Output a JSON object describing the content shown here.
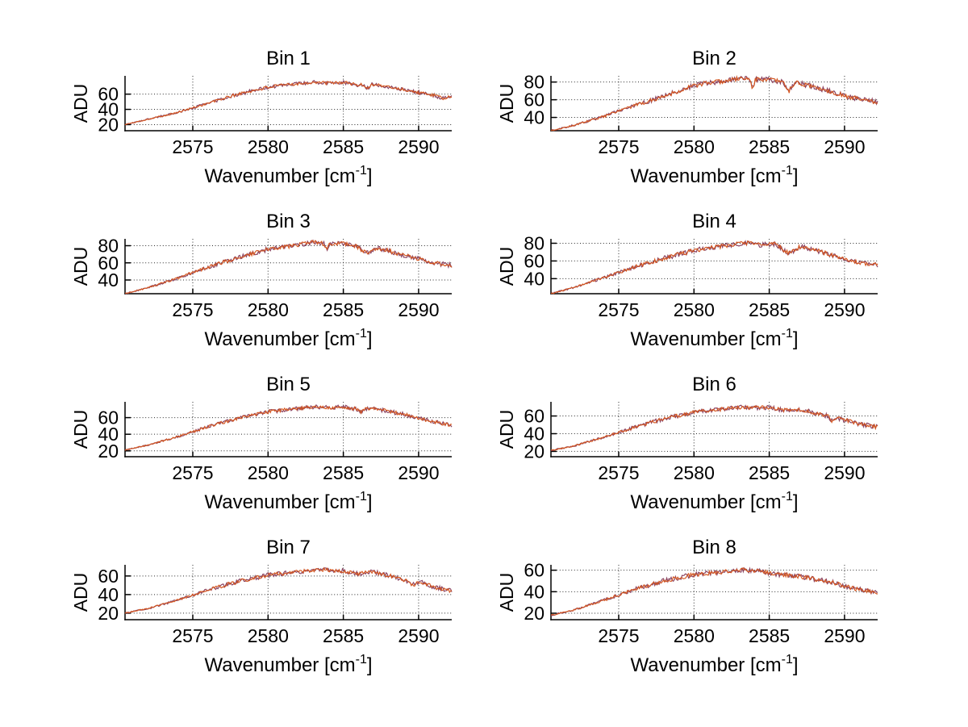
{
  "figure": {
    "background": "#ffffff",
    "ylabel": "ADU",
    "xlabel_prefix": "Wavenumber [cm",
    "xlabel_sup": "-1",
    "xlabel_suffix": "]",
    "colors": {
      "line": "#d4561f",
      "line_under": "#7e3050",
      "axis": "#000000",
      "grid": "#2a2a2a",
      "text": "#000000"
    }
  },
  "chart_data": [
    {
      "type": "line",
      "title": "Bin 1",
      "xlabel": "Wavenumber [cm^-1]",
      "ylabel": "ADU",
      "xlim": [
        2570.5,
        2592.2
      ],
      "ylim": [
        12,
        84
      ],
      "x_ticks": [
        2575,
        2580,
        2585,
        2590
      ],
      "y_ticks": [
        20,
        40,
        60
      ],
      "grid": true,
      "x": [
        2570.5,
        2572,
        2574,
        2576,
        2578,
        2580,
        2581.5,
        2583,
        2584,
        2585,
        2586,
        2587,
        2588,
        2589,
        2590,
        2591,
        2591.6,
        2592.2
      ],
      "y": [
        20,
        27,
        36,
        48,
        60,
        69,
        73,
        75.5,
        74.5,
        75.5,
        72,
        73,
        69.5,
        66,
        62,
        58.5,
        54.5,
        56.5
      ],
      "spikes": [
        {
          "x": 2586.6,
          "d": 5,
          "w": 0.3
        }
      ],
      "noise_amp": 2.1,
      "seed": 101
    },
    {
      "type": "line",
      "title": "Bin 2",
      "xlabel": "Wavenumber [cm^-1]",
      "ylabel": "ADU",
      "xlim": [
        2570.5,
        2592.2
      ],
      "ylim": [
        25,
        87
      ],
      "x_ticks": [
        2575,
        2580,
        2585,
        2590
      ],
      "y_ticks": [
        40,
        60,
        80
      ],
      "grid": true,
      "x": [
        2570.5,
        2572,
        2574,
        2576,
        2578,
        2580,
        2581,
        2582,
        2583,
        2584,
        2585,
        2586,
        2587,
        2588,
        2589,
        2590,
        2591,
        2592.2
      ],
      "y": [
        25,
        31,
        41,
        53,
        64,
        76,
        79,
        81,
        84,
        83,
        82.5,
        80,
        78.5,
        74.5,
        69.5,
        64.5,
        60.5,
        57.5
      ],
      "spikes": [
        {
          "x": 2583.9,
          "d": 12,
          "w": 0.16
        },
        {
          "x": 2586.3,
          "d": 10,
          "w": 0.4
        }
      ],
      "noise_amp": 2.5,
      "seed": 202
    },
    {
      "type": "line",
      "title": "Bin 3",
      "xlabel": "Wavenumber [cm^-1]",
      "ylabel": "ADU",
      "xlim": [
        2570.5,
        2592.2
      ],
      "ylim": [
        24,
        88
      ],
      "x_ticks": [
        2575,
        2580,
        2585,
        2590
      ],
      "y_ticks": [
        40,
        60,
        80
      ],
      "grid": true,
      "x": [
        2570.5,
        2572,
        2574,
        2576,
        2578,
        2580,
        2582,
        2583,
        2584,
        2585,
        2585.8,
        2586.5,
        2587.3,
        2588,
        2589,
        2590,
        2591,
        2592.2
      ],
      "y": [
        24,
        31,
        42,
        55,
        66,
        76,
        81,
        84,
        81.5,
        82.5,
        80,
        71.5,
        77.5,
        74,
        69,
        64.5,
        60,
        57
      ],
      "spikes": [
        {
          "x": 2583.9,
          "d": 7,
          "w": 0.18
        }
      ],
      "noise_amp": 2.4,
      "seed": 303
    },
    {
      "type": "line",
      "title": "Bin 4",
      "xlabel": "Wavenumber [cm^-1]",
      "ylabel": "ADU",
      "xlim": [
        2570.5,
        2592.2
      ],
      "ylim": [
        23,
        85
      ],
      "x_ticks": [
        2575,
        2580,
        2585,
        2590
      ],
      "y_ticks": [
        40,
        60,
        80
      ],
      "grid": true,
      "x": [
        2570.5,
        2572,
        2574,
        2576,
        2578,
        2580,
        2582,
        2583.5,
        2584.5,
        2585.4,
        2586.3,
        2587.1,
        2588,
        2589,
        2590,
        2591,
        2592.2
      ],
      "y": [
        23,
        30,
        41,
        53,
        63,
        72,
        77,
        80.5,
        78,
        79.5,
        68.5,
        76.5,
        72.5,
        67.5,
        62.5,
        58,
        55
      ],
      "spikes": [],
      "noise_amp": 2.4,
      "seed": 404
    },
    {
      "type": "line",
      "title": "Bin 5",
      "xlabel": "Wavenumber [cm^-1]",
      "ylabel": "ADU",
      "xlim": [
        2570.5,
        2592.2
      ],
      "ylim": [
        13,
        79
      ],
      "x_ticks": [
        2575,
        2580,
        2585,
        2590
      ],
      "y_ticks": [
        20,
        40,
        60
      ],
      "grid": true,
      "x": [
        2570.5,
        2572,
        2574,
        2576,
        2578,
        2580,
        2582,
        2583,
        2584,
        2585,
        2586,
        2587,
        2588,
        2589,
        2590,
        2591,
        2592.2
      ],
      "y": [
        21,
        27,
        37,
        49,
        59,
        67,
        71,
        73,
        72,
        73,
        70,
        71.5,
        67.5,
        64,
        59.5,
        55,
        50.5
      ],
      "spikes": [
        {
          "x": 2586.2,
          "d": 4,
          "w": 0.3
        }
      ],
      "noise_amp": 2.1,
      "seed": 505
    },
    {
      "type": "line",
      "title": "Bin 6",
      "xlabel": "Wavenumber [cm^-1]",
      "ylabel": "ADU",
      "xlim": [
        2570.5,
        2592.2
      ],
      "ylim": [
        14,
        76
      ],
      "x_ticks": [
        2575,
        2580,
        2585,
        2590
      ],
      "y_ticks": [
        20,
        40,
        60
      ],
      "grid": true,
      "x": [
        2570.5,
        2572,
        2574,
        2576,
        2578,
        2580,
        2582,
        2583,
        2584,
        2585,
        2586,
        2587,
        2588,
        2589,
        2590,
        2591,
        2592.2
      ],
      "y": [
        21,
        26,
        36,
        47,
        57,
        64,
        68,
        70,
        69.5,
        69.5,
        66.5,
        67.5,
        63.5,
        59.5,
        55.5,
        51,
        47.5
      ],
      "spikes": [
        {
          "x": 2589.2,
          "d": 5,
          "w": 0.3
        }
      ],
      "noise_amp": 2.2,
      "seed": 606
    },
    {
      "type": "line",
      "title": "Bin 7",
      "xlabel": "Wavenumber [cm^-1]",
      "ylabel": "ADU",
      "xlim": [
        2570.5,
        2592.2
      ],
      "ylim": [
        13,
        72
      ],
      "x_ticks": [
        2575,
        2580,
        2585,
        2590
      ],
      "y_ticks": [
        20,
        40,
        60
      ],
      "grid": true,
      "x": [
        2570.5,
        2572,
        2574,
        2576,
        2578,
        2580,
        2582,
        2583,
        2584,
        2585,
        2586,
        2587,
        2588,
        2589,
        2589.6,
        2590.2,
        2591,
        2592.2
      ],
      "y": [
        20,
        25,
        34,
        45,
        54,
        61,
        64.5,
        66.5,
        66.5,
        65.5,
        62.5,
        64.5,
        60.5,
        56,
        50.5,
        53,
        48,
        44
      ],
      "spikes": [],
      "noise_amp": 2.1,
      "seed": 707
    },
    {
      "type": "line",
      "title": "Bin 8",
      "xlabel": "Wavenumber [cm^-1]",
      "ylabel": "ADU",
      "xlim": [
        2570.5,
        2592.2
      ],
      "ylim": [
        14,
        65
      ],
      "x_ticks": [
        2575,
        2580,
        2585,
        2590
      ],
      "y_ticks": [
        20,
        40,
        60
      ],
      "grid": true,
      "x": [
        2570.5,
        2572,
        2574,
        2576,
        2578,
        2580,
        2581.5,
        2583,
        2584,
        2585,
        2586,
        2587,
        2588,
        2589,
        2590,
        2591,
        2592.2
      ],
      "y": [
        18,
        23,
        32,
        42,
        50,
        56,
        58,
        60.5,
        59.5,
        57.5,
        55.5,
        54.5,
        51.5,
        49.5,
        45,
        42,
        39.5
      ],
      "spikes": [],
      "noise_amp": 2.0,
      "seed": 808
    }
  ]
}
